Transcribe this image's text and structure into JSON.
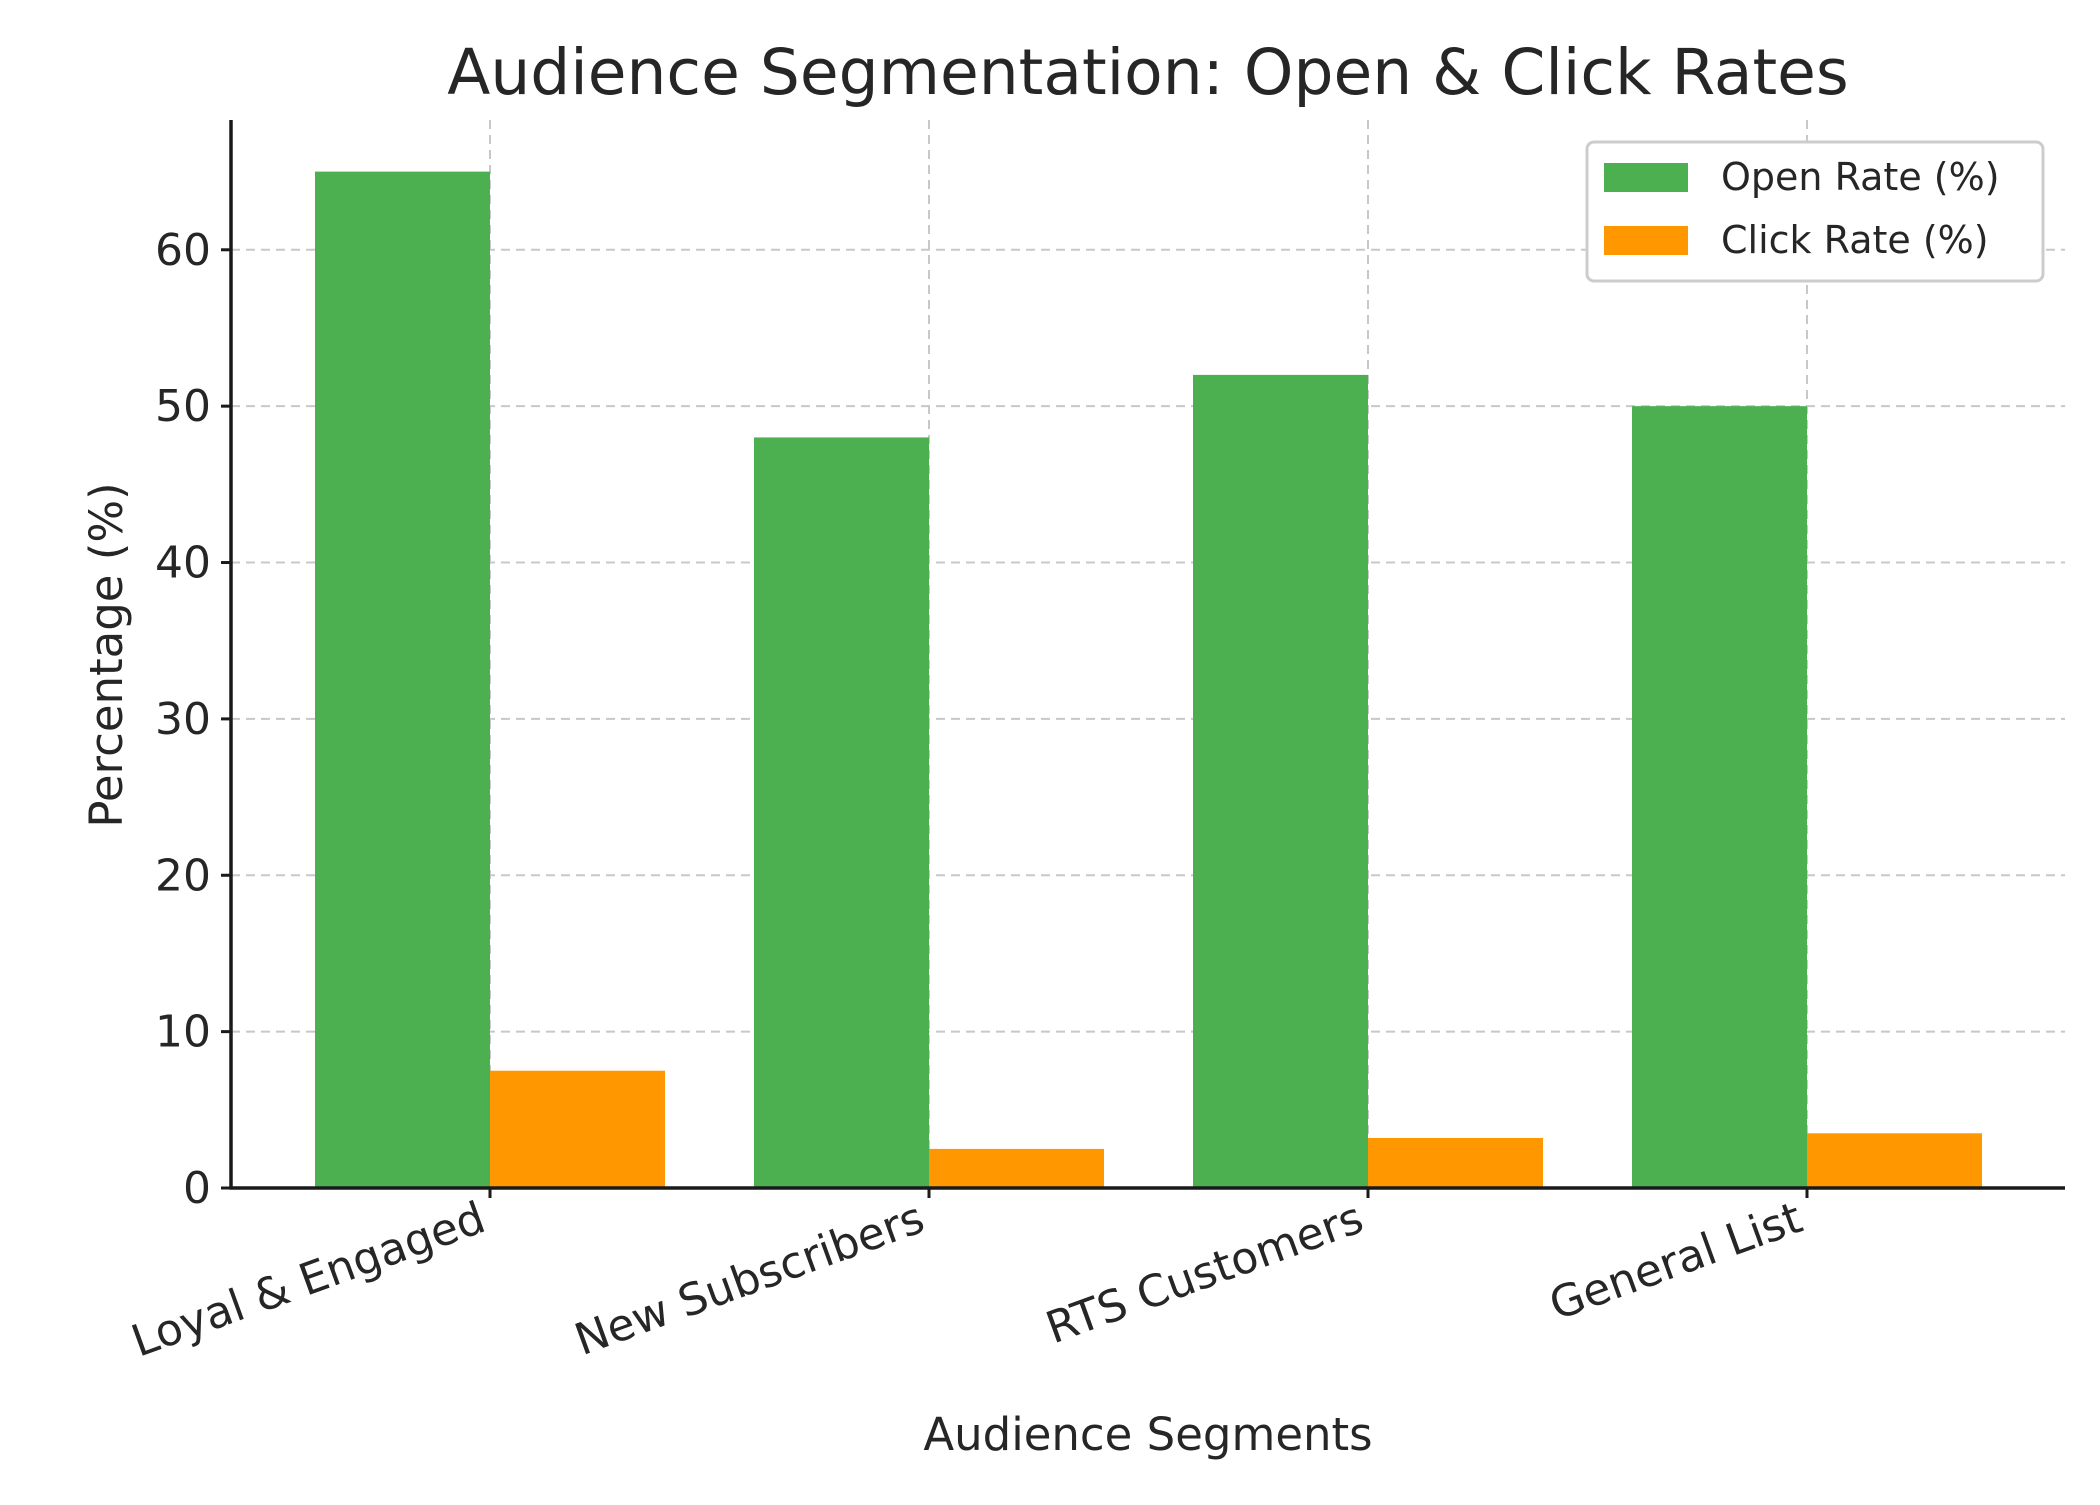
{
  "chart_data": {
    "type": "bar",
    "title": "Audience Segmentation: Open & Click Rates",
    "xlabel": "Audience Segments",
    "ylabel": "Percentage (%)",
    "categories": [
      "Loyal & Engaged",
      "New Subscribers",
      "RTS Customers",
      "General List"
    ],
    "series": [
      {
        "name": "Open Rate (%)",
        "values": [
          65,
          48,
          52,
          50
        ],
        "color": "#4caf50"
      },
      {
        "name": "Click Rate (%)",
        "values": [
          7.5,
          2.5,
          3.2,
          3.5
        ],
        "color": "#ff9800"
      }
    ],
    "ylim": [
      0,
      68.3
    ],
    "yticks": [
      0,
      10,
      20,
      30,
      40,
      50,
      60
    ],
    "grid": true,
    "legend_position": "top-right"
  }
}
